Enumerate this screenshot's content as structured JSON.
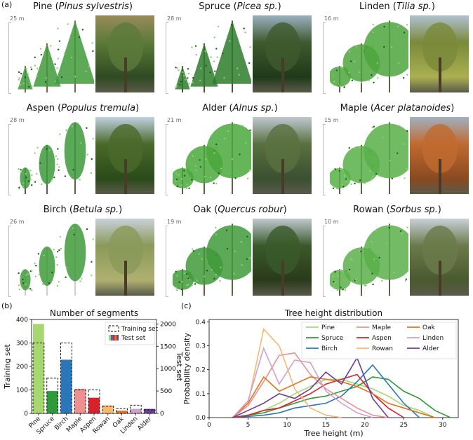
{
  "panel_labels": {
    "a": "(a)",
    "b": "(b)",
    "c": "(c)"
  },
  "species_cells": [
    {
      "common": "Pine",
      "latin": "Pinus sylvestris",
      "height": "25 m"
    },
    {
      "common": "Spruce",
      "latin": "Picea sp.",
      "height": "28 m"
    },
    {
      "common": "Linden",
      "latin": "Tilia sp.",
      "height": "16 m"
    },
    {
      "common": "Aspen",
      "latin": "Populus tremula",
      "height": "28 m"
    },
    {
      "common": "Alder",
      "latin": "Alnus sp.",
      "height": "21 m"
    },
    {
      "common": "Maple",
      "latin": "Acer platanoides",
      "height": "15 m"
    },
    {
      "common": "Birch",
      "latin": "Betula sp.",
      "height": "26 m"
    },
    {
      "common": "Oak",
      "latin": "Quercus robur",
      "height": "19 m"
    },
    {
      "common": "Rowan",
      "latin": "Sorbus sp.",
      "height": "10 m"
    }
  ],
  "colors": {
    "Pine": "#a6d86f",
    "Spruce": "#2f9a3a",
    "Birch": "#2b76b9",
    "Maple": "#ef8f8f",
    "Aspen": "#d8222a",
    "Rowan": "#f7b870",
    "Oak": "#e2731c",
    "Linden": "#cfa0cc",
    "Alder": "#6a3d9a"
  },
  "chart_data": [
    {
      "type": "bar",
      "title": "Number of segments",
      "ylabel": "Training set",
      "y2label": "Test set",
      "categories": [
        "Pine",
        "Spruce",
        "Birch",
        "Maple",
        "Aspen",
        "Rowan",
        "Oak",
        "Linden",
        "Alder"
      ],
      "series": [
        {
          "name": "Training set",
          "values": [
            300,
            150,
            300,
            100,
            100,
            30,
            20,
            35,
            15
          ]
        },
        {
          "name": "Test set",
          "values": [
            2000,
            500,
            1200,
            550,
            350,
            180,
            60,
            100,
            100
          ]
        }
      ],
      "ylim": [
        0,
        400
      ],
      "y2lim": [
        0,
        2100
      ],
      "yticks": [
        0,
        100,
        200,
        300,
        400
      ],
      "y2ticks": [
        0,
        500,
        1000,
        1500,
        2000
      ],
      "legend": "top-right"
    },
    {
      "type": "line",
      "title": "Tree height distribution",
      "xlabel": "Tree height (m)",
      "ylabel": "Probability density",
      "xlim": [
        0,
        32
      ],
      "ylim": [
        0,
        0.41
      ],
      "xticks": [
        0,
        5,
        10,
        15,
        20,
        25,
        30
      ],
      "yticks": [
        0.0,
        0.1,
        0.2,
        0.3,
        0.4
      ],
      "legend": "top-right",
      "series": [
        {
          "name": "Pine",
          "x": [
            3,
            5,
            7,
            9,
            11,
            13,
            15,
            17,
            19,
            21,
            23,
            25,
            27,
            29
          ],
          "y": [
            0,
            0.01,
            0.03,
            0.06,
            0.1,
            0.13,
            0.16,
            0.16,
            0.14,
            0.12,
            0.09,
            0.05,
            0.03,
            0
          ]
        },
        {
          "name": "Spruce",
          "x": [
            3,
            5,
            7,
            9,
            11,
            13,
            15,
            17,
            19,
            21,
            23,
            25,
            27,
            29,
            31
          ],
          "y": [
            0,
            0.01,
            0.02,
            0.04,
            0.06,
            0.08,
            0.09,
            0.11,
            0.13,
            0.17,
            0.16,
            0.11,
            0.08,
            0.03,
            0
          ]
        },
        {
          "name": "Birch",
          "x": [
            3,
            5,
            7,
            9,
            11,
            13,
            15,
            17,
            19,
            21,
            23,
            25,
            27
          ],
          "y": [
            0,
            0.005,
            0.01,
            0.02,
            0.04,
            0.05,
            0.06,
            0.09,
            0.15,
            0.22,
            0.14,
            0.06,
            0
          ]
        },
        {
          "name": "Maple",
          "x": [
            3,
            5,
            7,
            9,
            11,
            13,
            15,
            17,
            19,
            21,
            23
          ],
          "y": [
            0,
            0.05,
            0.15,
            0.26,
            0.27,
            0.18,
            0.12,
            0.08,
            0.04,
            0.01,
            0
          ]
        },
        {
          "name": "Aspen",
          "x": [
            3,
            5,
            7,
            9,
            11,
            13,
            15,
            17,
            19,
            21,
            23,
            25
          ],
          "y": [
            0,
            0.01,
            0.03,
            0.04,
            0.07,
            0.1,
            0.14,
            0.16,
            0.18,
            0.1,
            0.04,
            0
          ]
        },
        {
          "name": "Rowan",
          "x": [
            3,
            5,
            7,
            9,
            11,
            13,
            15,
            17
          ],
          "y": [
            0,
            0.06,
            0.37,
            0.3,
            0.12,
            0.04,
            0.01,
            0
          ]
        },
        {
          "name": "Oak",
          "x": [
            3,
            5,
            7,
            9,
            11,
            13,
            15,
            17,
            19,
            21,
            23,
            25,
            27,
            29
          ],
          "y": [
            0,
            0.06,
            0.17,
            0.11,
            0.14,
            0.17,
            0.16,
            0.15,
            0.13,
            0.1,
            0.06,
            0.04,
            0.02,
            0
          ]
        },
        {
          "name": "Linden",
          "x": [
            3,
            5,
            7,
            9,
            11,
            13,
            15,
            17,
            19,
            21
          ],
          "y": [
            0,
            0.07,
            0.29,
            0.14,
            0.24,
            0.23,
            0.11,
            0.06,
            0.02,
            0
          ]
        },
        {
          "name": "Alder",
          "x": [
            3,
            5,
            7,
            9,
            11,
            13,
            15,
            17,
            19,
            21,
            23
          ],
          "y": [
            0,
            0.03,
            0.06,
            0.1,
            0.08,
            0.12,
            0.19,
            0.14,
            0.25,
            0.08,
            0
          ]
        }
      ]
    }
  ]
}
